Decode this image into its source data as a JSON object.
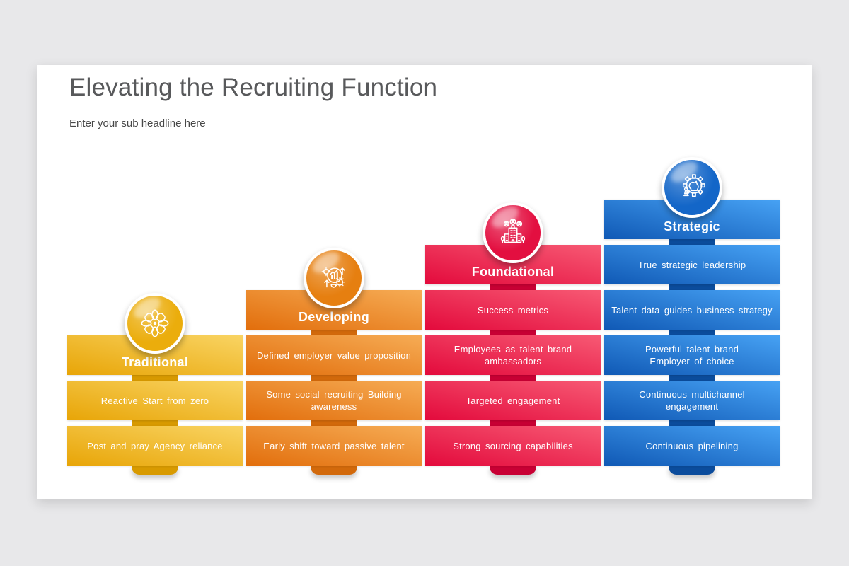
{
  "header": {
    "title": "Elevating the Recruiting Function",
    "subtitle": "Enter your sub headline here"
  },
  "diagram": {
    "type": "stepped-maturity-columns",
    "columns": [
      {
        "id": "traditional",
        "label": "Traditional",
        "icon": "flower-icon",
        "color_dark": "#E8A507",
        "color_light": "#F9D463",
        "color_tab": "#D89A00",
        "circle_color": "#EBAD0C",
        "items": [
          "Reactive Start from zero",
          "Post and pray Agency reliance"
        ]
      },
      {
        "id": "developing",
        "label": "Developing",
        "icon": "growth-chart-icon",
        "color_dark": "#E26E0C",
        "color_light": "#F6AC55",
        "color_tab": "#D2690B",
        "circle_color": "#E67F10",
        "items": [
          "Defined employer value proposition",
          "Some social recruiting Building\nawareness",
          "Early shift toward passive talent"
        ]
      },
      {
        "id": "foundational",
        "label": "Foundational",
        "icon": "company-people-icon",
        "color_dark": "#E30A3C",
        "color_light": "#F75A74",
        "color_tab": "#C80034",
        "circle_color": "#E30F40",
        "items": [
          "Success metrics",
          "Employees as talent brand\nambassadors",
          "Targeted engagement",
          "Strong sourcing capabilities"
        ]
      },
      {
        "id": "strategic",
        "label": "Strategic",
        "icon": "chess-gear-icon",
        "color_dark": "#1059B5",
        "color_light": "#47A2F4",
        "color_tab": "#0B4C9C",
        "circle_color": "#1366C8",
        "items": [
          "True strategic leadership",
          "Talent data guides business strategy",
          "Powerful talent brand\nEmployer of choice",
          "Continuous multichannel\nengagement",
          "Continuous pipelining"
        ]
      }
    ]
  }
}
